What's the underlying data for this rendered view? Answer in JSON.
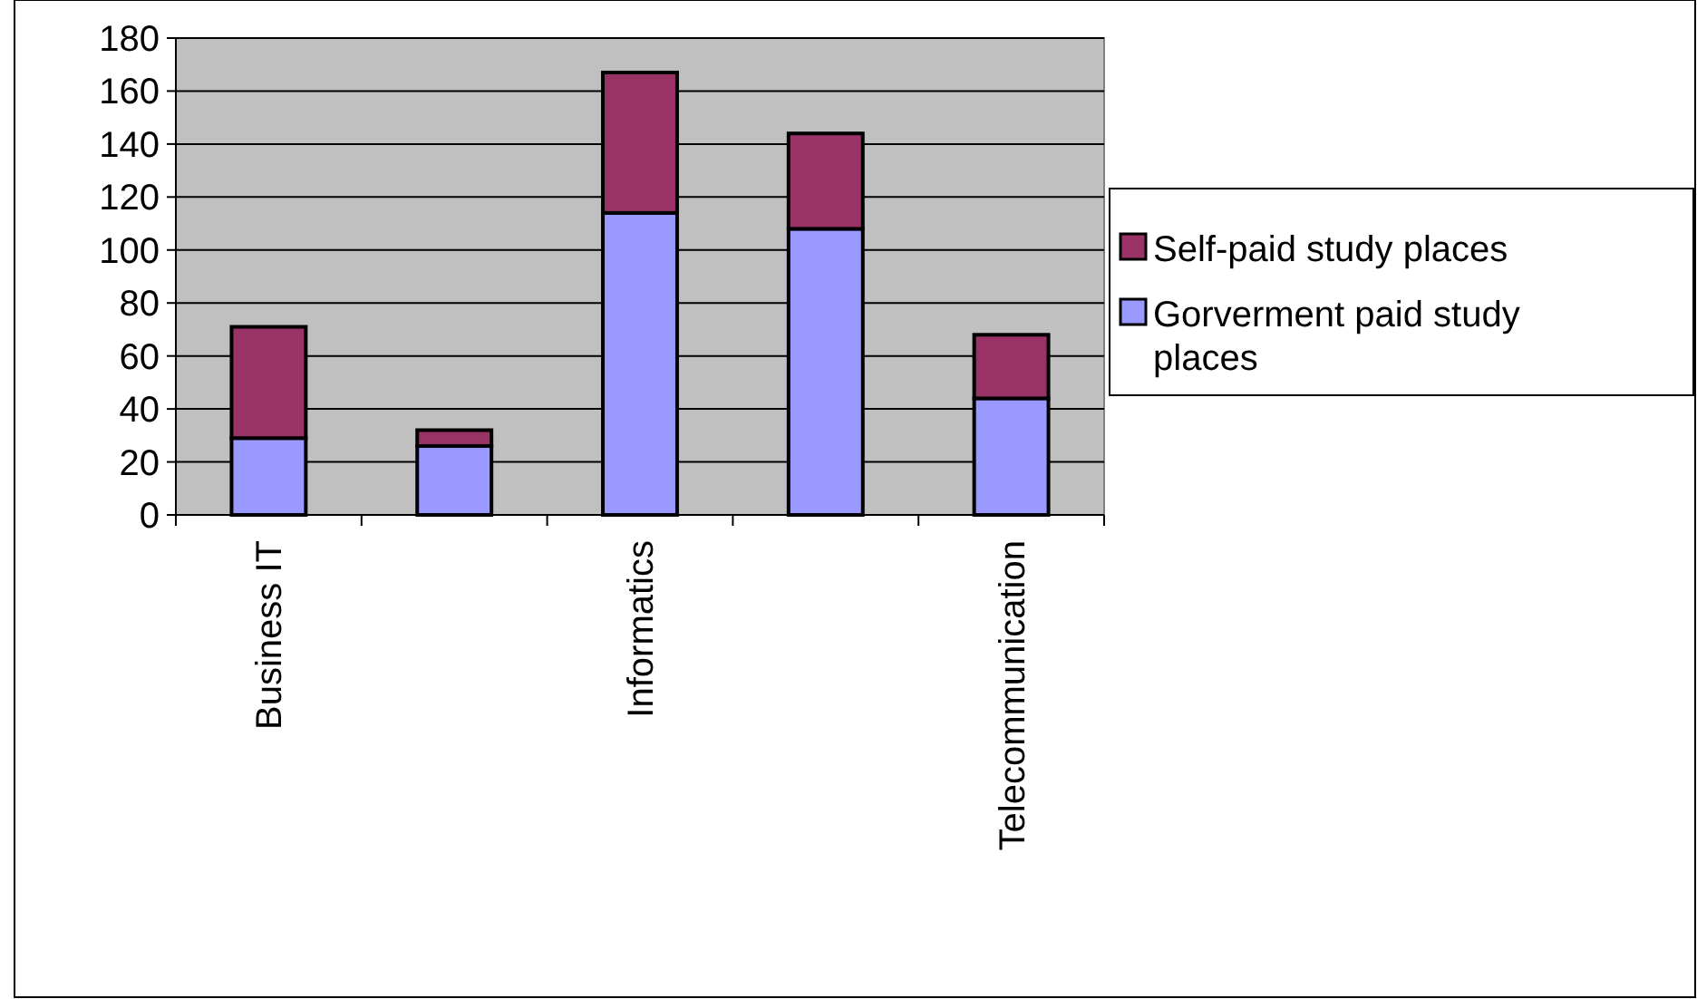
{
  "chart_data": {
    "type": "bar",
    "stacked": true,
    "categories": [
      "Business IT",
      null,
      "Informatics",
      null,
      "Telecommunication"
    ],
    "series": [
      {
        "name": "Gorverment paid study places",
        "color": "#9999ff",
        "values": [
          29,
          26,
          114,
          108,
          44
        ]
      },
      {
        "name": "Self-paid study places",
        "color": "#993366",
        "values": [
          42,
          6,
          53,
          36,
          24
        ]
      }
    ],
    "ylim": [
      0,
      180
    ],
    "yticks": [
      0,
      20,
      40,
      60,
      80,
      100,
      120,
      140,
      160,
      180
    ],
    "grid": "y",
    "legend": "right"
  }
}
